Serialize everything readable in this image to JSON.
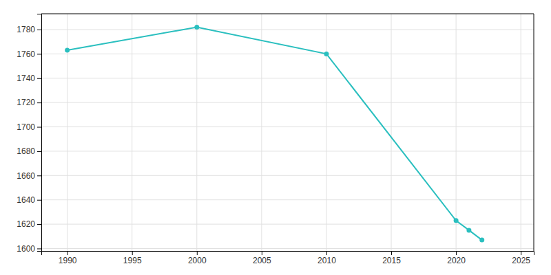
{
  "chart_data": {
    "type": "line",
    "x": [
      1990,
      2000,
      2010,
      2020,
      2021,
      2022
    ],
    "values": [
      1763,
      1782,
      1760,
      1623,
      1615,
      1607
    ],
    "color": "#2abfbf",
    "marker": "circle",
    "xlim": [
      1988,
      2026
    ],
    "ylim": [
      1598,
      1793
    ],
    "xticks": [
      1990,
      1995,
      2000,
      2005,
      2010,
      2015,
      2020,
      2025
    ],
    "yticks": [
      1600,
      1620,
      1640,
      1660,
      1680,
      1700,
      1720,
      1740,
      1760,
      1780
    ],
    "grid": true
  }
}
